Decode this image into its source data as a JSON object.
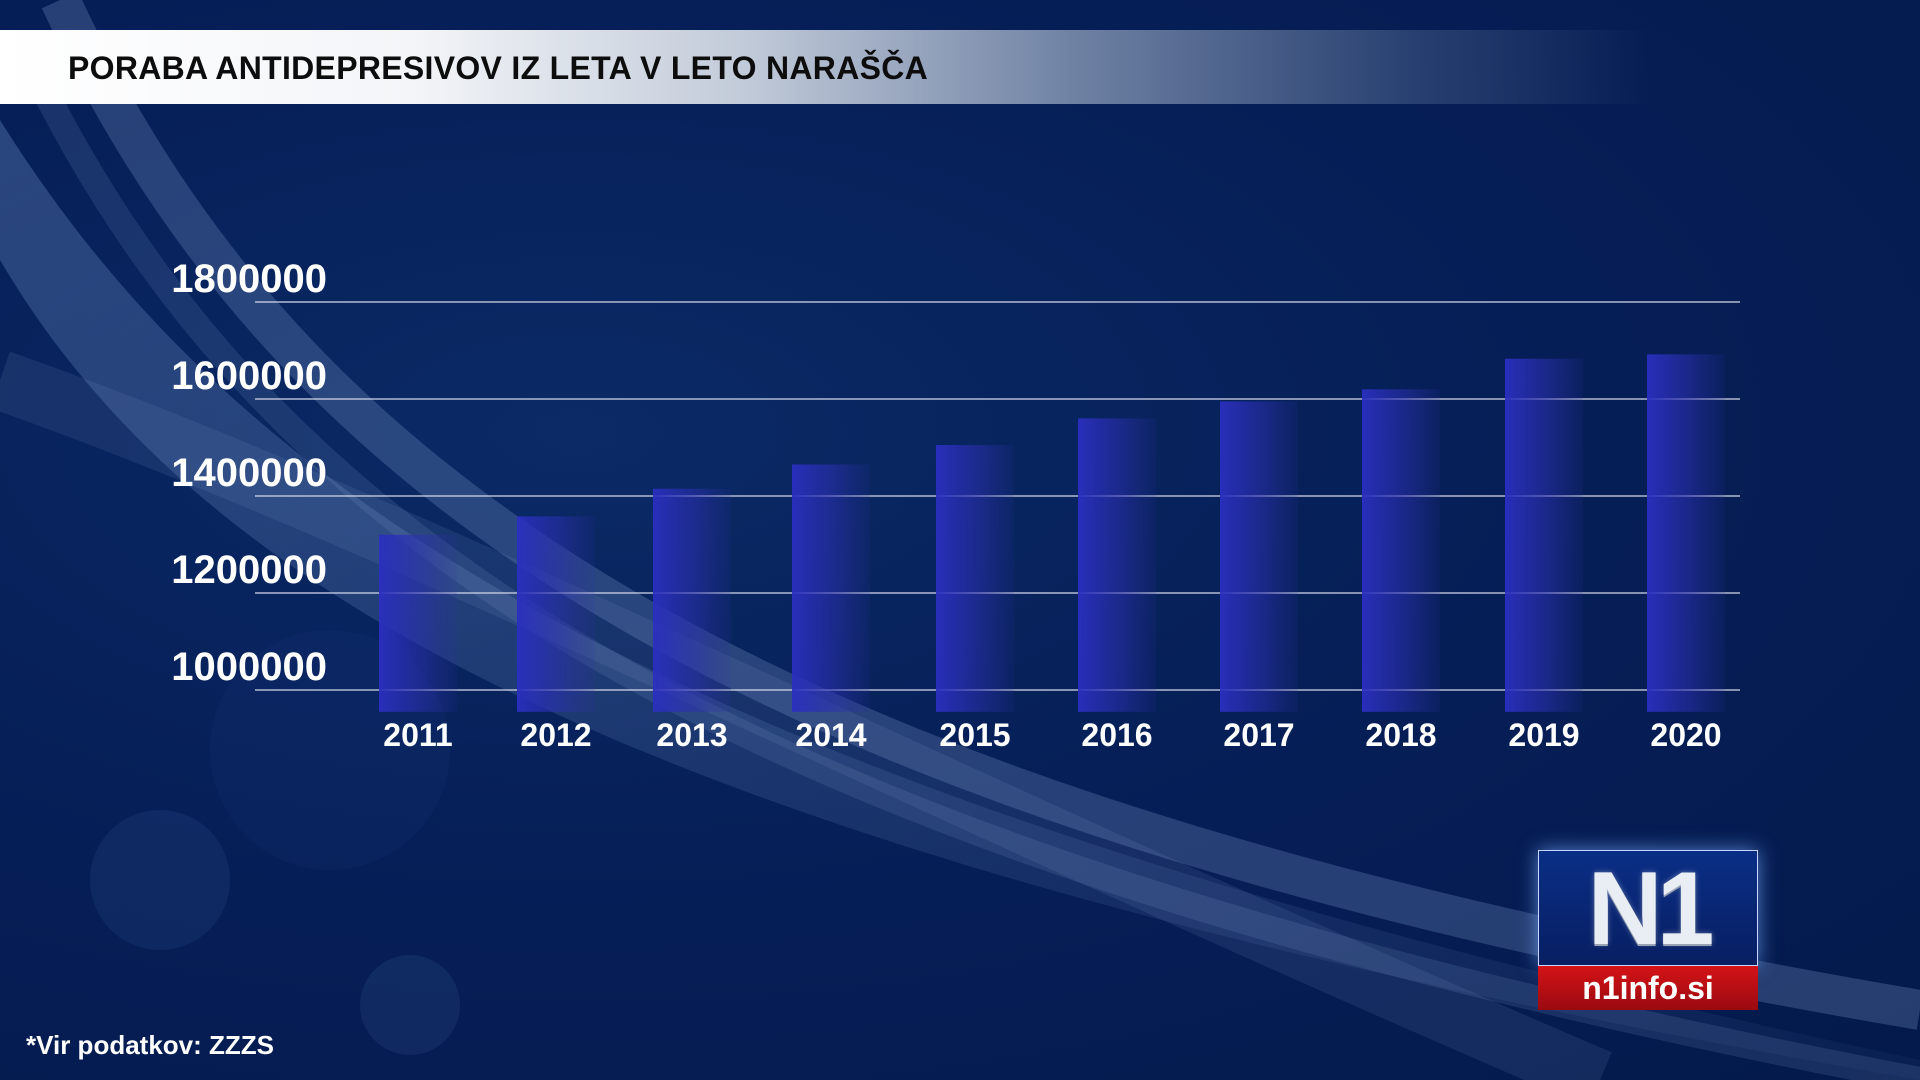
{
  "title": "PORABA ANTIDEPRESIVOV IZ LETA V LETO NARAŠČA",
  "source": "*Vir podatkov:  ZZZS",
  "logo": {
    "mark": "N1",
    "site": "n1info.si"
  },
  "colors": {
    "background": "#061f58",
    "bar": "#2c34b8",
    "gridline": "#d0d6e6",
    "text": "#ffffff",
    "logo_red": "#c8101a"
  },
  "chart_data": {
    "type": "bar",
    "title": "PORABA ANTIDEPRESIVOV IZ LETA V LETO NARAŠČA",
    "categories": [
      "2011",
      "2012",
      "2013",
      "2014",
      "2015",
      "2016",
      "2017",
      "2018",
      "2019",
      "2020"
    ],
    "values": [
      1320000,
      1358000,
      1415000,
      1465000,
      1505000,
      1560000,
      1595000,
      1620000,
      1683000,
      1692000
    ],
    "ylim": [
      955000,
      1800000
    ],
    "yticks": [
      1000000,
      1200000,
      1400000,
      1600000,
      1800000
    ],
    "ytick_labels": [
      "1000000",
      "1200000",
      "1400000",
      "1600000",
      "1800000"
    ],
    "xlabel": "",
    "ylabel": "",
    "grid": true,
    "legend": "none"
  }
}
